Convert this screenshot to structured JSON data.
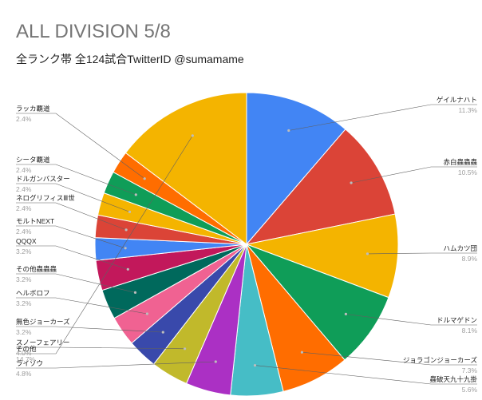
{
  "chart_data": {
    "type": "pie",
    "title": "ALL DIVISION 5/8",
    "subtitle": "全ランク帯 全124試合TwitterID @sumamame",
    "slices": [
      {
        "label": "ゲイルナハト",
        "pct_label": "11.3%",
        "value": 11.3,
        "color": "#4285f4"
      },
      {
        "label": "赤白蟲蟲蟲",
        "pct_label": "10.5%",
        "value": 10.5,
        "color": "#db4437"
      },
      {
        "label": "ハムカツ団",
        "pct_label": "8.9%",
        "value": 8.9,
        "color": "#f4b400"
      },
      {
        "label": "ドルマゲドン",
        "pct_label": "8.1%",
        "value": 8.1,
        "color": "#0f9d58"
      },
      {
        "label": "ジョラゴンジョーカーズ",
        "pct_label": "7.3%",
        "value": 7.3,
        "color": "#ff6d00"
      },
      {
        "label": "蟲破天九十九掛",
        "pct_label": "5.6%",
        "value": 5.6,
        "color": "#46bdc6"
      },
      {
        "label": "ライゾウ",
        "pct_label": "4.8%",
        "value": 4.8,
        "color": "#ab30c4"
      },
      {
        "label": "スノーフェアリー",
        "pct_label": "4.0%",
        "value": 4.0,
        "color": "#c1b92b"
      },
      {
        "label": "無色ジョーカーズ",
        "pct_label": "3.2%",
        "value": 3.2,
        "color": "#3949ab"
      },
      {
        "label": "ヘルボロフ",
        "pct_label": "3.2%",
        "value": 3.2,
        "color": "#f06292"
      },
      {
        "label": "その他蟲蟲蟲",
        "pct_label": "3.2%",
        "value": 3.2,
        "color": "#00695c"
      },
      {
        "label": "QQQX",
        "pct_label": "3.2%",
        "value": 3.2,
        "color": "#c2185b"
      },
      {
        "label": "モルトNEXT",
        "pct_label": "2.4%",
        "value": 2.4,
        "color": "#4285f4"
      },
      {
        "label": "ネログリフィスⅢ世",
        "pct_label": "2.4%",
        "value": 2.4,
        "color": "#db4437"
      },
      {
        "label": "ドルガンバスター",
        "pct_label": "2.4%",
        "value": 2.4,
        "color": "#f4b400"
      },
      {
        "label": "シータ覇道",
        "pct_label": "2.4%",
        "value": 2.4,
        "color": "#0f9d58"
      },
      {
        "label": "ラッカ覇道",
        "pct_label": "2.4%",
        "value": 2.4,
        "color": "#ff6d00"
      },
      {
        "label": "その他",
        "pct_label": "14.7%",
        "value": 14.7,
        "color": "#f4b400"
      }
    ]
  }
}
